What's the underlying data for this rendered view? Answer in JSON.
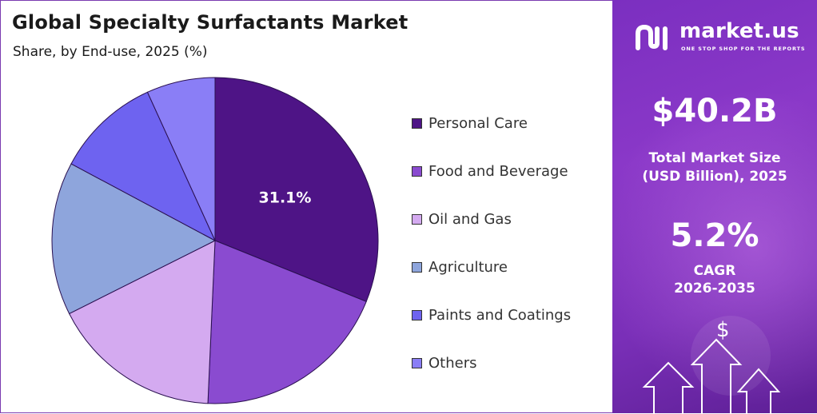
{
  "header": {
    "title": "Global Specialty Surfactants Market",
    "subtitle": "Share, by End-use, 2025 (%)"
  },
  "chart_data": {
    "type": "pie",
    "categories": [
      "Personal Care",
      "Food and Beverage",
      "Oil and Gas",
      "Agriculture",
      "Paints and Coatings",
      "Others"
    ],
    "values": [
      31.1,
      19.6,
      16.9,
      15.2,
      10.4,
      6.8
    ],
    "colors": [
      "#4e1486",
      "#8a4bd0",
      "#d4aaf0",
      "#8ea5dc",
      "#6e63f0",
      "#8a7ef6"
    ],
    "data_labels": [
      "31.1%",
      "",
      "",
      "",
      "",
      ""
    ],
    "legend_position": "right"
  },
  "sidebar": {
    "brand": "market.us",
    "tagline": "ONE STOP SHOP FOR THE REPORTS",
    "stats": [
      {
        "value": "$40.2B",
        "label_line1": "Total Market Size",
        "label_line2": "(USD Billion), 2025"
      },
      {
        "value": "5.2%",
        "label_line1": "CAGR",
        "label_line2": "2026-2035"
      }
    ],
    "dollar_symbol": "$",
    "icons": [
      "market-us-logo-icon",
      "dollar-icon",
      "up-arrow-icon"
    ]
  }
}
